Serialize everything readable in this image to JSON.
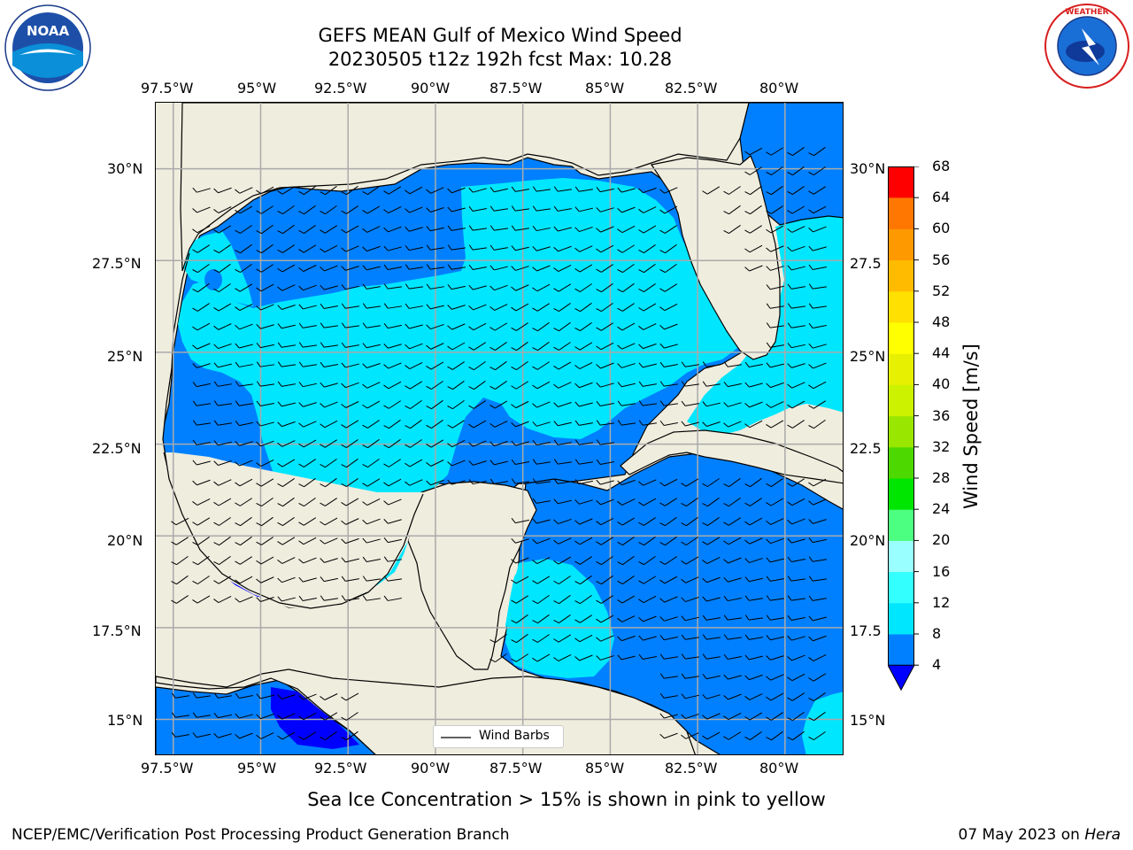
{
  "title": {
    "line1": "GEFS MEAN Gulf of Mexico Wind Speed",
    "line2": "20230505 t12z 192h fcst   Max: 10.28"
  },
  "logos": {
    "left": "NOAA",
    "right": "NATIONAL WEATHER SERVICE"
  },
  "map": {
    "lon_labels": [
      "97.5°W",
      "95°W",
      "92.5°W",
      "90°W",
      "87.5°W",
      "85°W",
      "82.5°W",
      "80°W"
    ],
    "lat_labels": [
      "30°N",
      "27.5°N",
      "25°N",
      "22.5°N",
      "20°N",
      "17.5°N",
      "15°N"
    ],
    "right_lat_labels": [
      "30°N",
      "27.5",
      "25°N",
      "22.5",
      "20°N",
      "17.5",
      "15°N"
    ],
    "lon_range": [
      -98,
      -78.3
    ],
    "lat_range": [
      14,
      31.8
    ],
    "land_color": "#efedde",
    "ocean_color": "#ffffff",
    "legend_label": "Wind Barbs"
  },
  "colorbar": {
    "title": "Wind Speed [m/s]",
    "ticks": [
      "4",
      "8",
      "12",
      "16",
      "20",
      "24",
      "28",
      "32",
      "36",
      "40",
      "44",
      "48",
      "52",
      "56",
      "60",
      "64",
      "68"
    ],
    "colors": [
      "#0080ff",
      "#00e6ff",
      "#33ffff",
      "#99ffff",
      "#4dff80",
      "#00e600",
      "#4dd900",
      "#99e600",
      "#ccf200",
      "#e6f000",
      "#ffff00",
      "#ffe000",
      "#ffbb00",
      "#ff9900",
      "#ff7700",
      "#ff4d00",
      "#ff2200",
      "#ff0000"
    ],
    "under_color": "#0000ff"
  },
  "note": "Sea Ice Concentration > 15% is shown in pink to yellow",
  "footer": {
    "left": "NCEP/EMC/Verification Post Processing Product Generation Branch",
    "right_date": "07 May 2023 on ",
    "right_machine": "Hera"
  }
}
